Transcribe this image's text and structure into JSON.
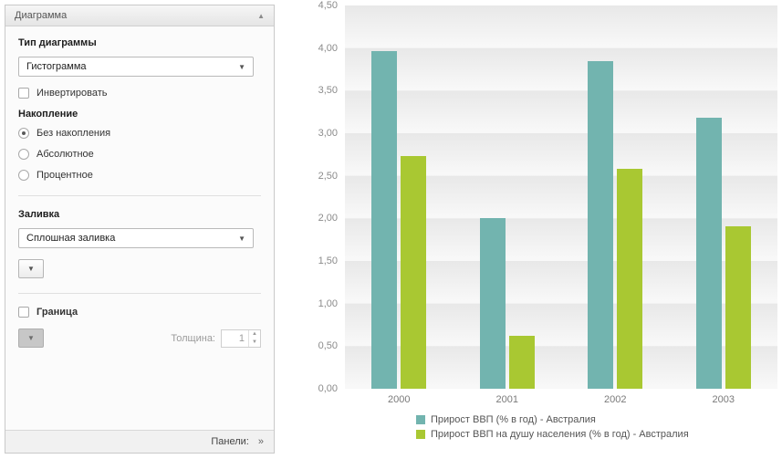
{
  "panel": {
    "title": "Диаграмма",
    "collapse_icon": "▲",
    "chart_type_label": "Тип диаграммы",
    "chart_type_value": "Гистограмма",
    "dropdown_arrow": "▼",
    "invert_label": "Инвертировать",
    "stacking_label": "Накопление",
    "stacking_options": [
      {
        "label": "Без накопления",
        "selected": true
      },
      {
        "label": "Абсолютное",
        "selected": false
      },
      {
        "label": "Процентное",
        "selected": false
      }
    ],
    "fill_label": "Заливка",
    "fill_value": "Сплошная заливка",
    "border_label": "Граница",
    "thickness_label": "Толщина:",
    "thickness_value": "1",
    "spinner_up": "▲",
    "spinner_down": "▼",
    "panels_label": "Панели:",
    "panels_chevron": "»"
  },
  "chart_data": {
    "type": "bar",
    "title": "",
    "xlabel": "",
    "ylabel": "",
    "categories": [
      "2000",
      "2001",
      "2002",
      "2003"
    ],
    "series": [
      {
        "name": "Прирост ВВП (% в год) - Австралия",
        "color": "#72b4af",
        "values": [
          3.96,
          2.0,
          3.85,
          3.18
        ]
      },
      {
        "name": "Прирост ВВП на душу населения (% в год) - Австралия",
        "color": "#a9c832",
        "values": [
          2.73,
          0.62,
          2.58,
          1.91
        ]
      }
    ],
    "ylim": [
      0,
      4.5
    ],
    "ytick_step": 0.5,
    "ytick_labels": [
      "0,00",
      "0,50",
      "1,00",
      "1,50",
      "2,00",
      "2,50",
      "3,00",
      "3,50",
      "4,00",
      "4,50"
    ],
    "grid": true,
    "legend_position": "bottom"
  }
}
